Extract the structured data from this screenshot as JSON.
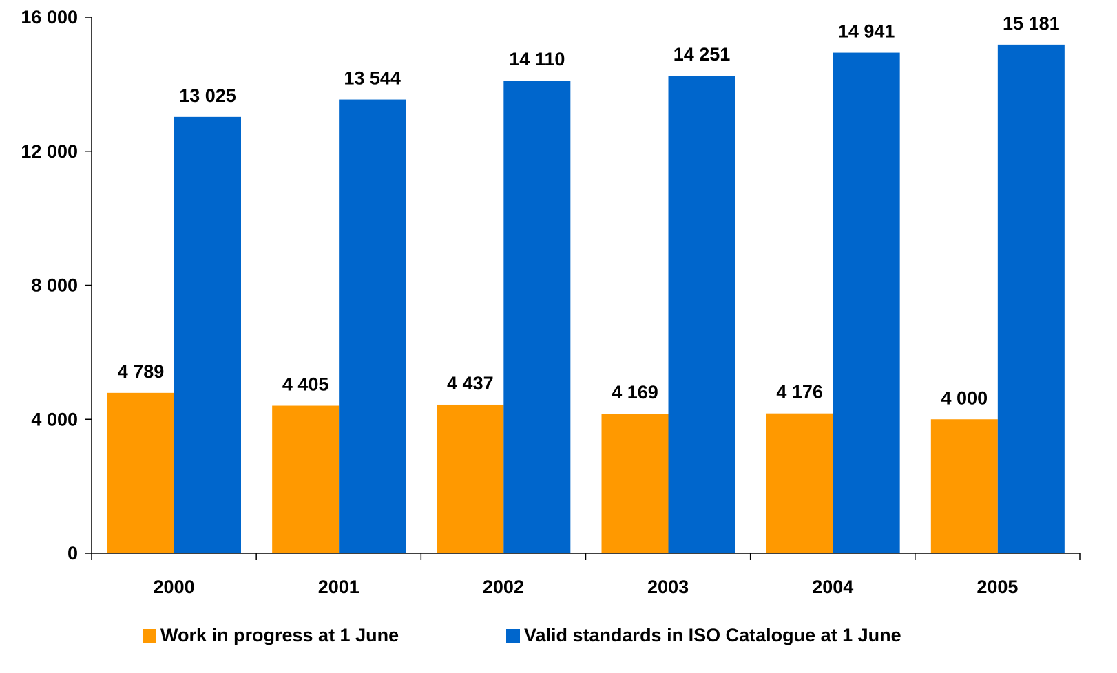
{
  "chart_data": {
    "type": "bar",
    "categories": [
      "2000",
      "2001",
      "2002",
      "2003",
      "2004",
      "2005"
    ],
    "series": [
      {
        "name": "Work in progress at 1 June",
        "color": "#FF9900",
        "values": [
          4789,
          4405,
          4437,
          4169,
          4176,
          4000
        ],
        "labels": [
          "4 789",
          "4 405",
          "4 437",
          "4 169",
          "4 176",
          "4 000"
        ]
      },
      {
        "name": "Valid standards in ISO Catalogue at 1 June",
        "color": "#0066CC",
        "values": [
          13025,
          13544,
          14110,
          14251,
          14941,
          15181
        ],
        "labels": [
          "13 025",
          "13 544",
          "14 110",
          "14 251",
          "14 941",
          "15 181"
        ]
      }
    ],
    "ylim": [
      0,
      16000
    ],
    "yticks": [
      0,
      4000,
      8000,
      12000,
      16000
    ],
    "ytick_labels": [
      "0",
      "4 000",
      "8 000",
      "12 000",
      "16 000"
    ],
    "grid": false,
    "legend_position": "bottom"
  }
}
